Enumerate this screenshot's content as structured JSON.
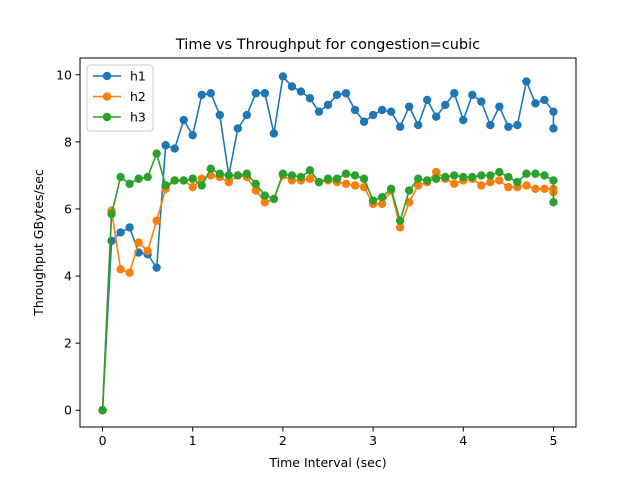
{
  "chart_data": {
    "type": "line",
    "title": "Time vs Throughput for congestion=cubic",
    "xlabel": "Time Interval (sec)",
    "ylabel": "Throughput GBytes/sec",
    "xlim": [
      -0.25,
      5.25
    ],
    "ylim": [
      -0.5,
      10.5
    ],
    "xticks": [
      0,
      1,
      2,
      3,
      4,
      5
    ],
    "yticks": [
      0,
      2,
      4,
      6,
      8,
      10
    ],
    "grid": false,
    "legend_position": "top-left",
    "x": [
      0,
      0.1,
      0.2,
      0.3,
      0.4,
      0.5,
      0.6,
      0.7,
      0.8,
      0.9,
      1.0,
      1.1,
      1.2,
      1.3,
      1.4,
      1.5,
      1.6,
      1.7,
      1.8,
      1.9,
      2.0,
      2.1,
      2.2,
      2.3,
      2.4,
      2.5,
      2.6,
      2.7,
      2.8,
      2.9,
      3.0,
      3.1,
      3.2,
      3.3,
      3.4,
      3.5,
      3.6,
      3.7,
      3.8,
      3.9,
      4.0,
      4.1,
      4.2,
      4.3,
      4.4,
      4.5,
      4.6,
      4.7,
      4.8,
      4.9,
      5.0,
      5.0
    ],
    "series": [
      {
        "name": "h1",
        "color": "#1f77b4",
        "values": [
          0,
          5.05,
          5.3,
          5.45,
          4.7,
          4.65,
          4.25,
          7.9,
          7.8,
          8.65,
          8.2,
          9.4,
          9.45,
          8.8,
          7.0,
          8.4,
          8.8,
          9.45,
          9.45,
          8.25,
          9.95,
          9.65,
          9.5,
          9.3,
          8.9,
          9.1,
          9.4,
          9.45,
          8.95,
          8.6,
          8.8,
          8.95,
          8.9,
          8.45,
          9.05,
          8.5,
          9.25,
          8.75,
          9.1,
          9.45,
          8.65,
          9.4,
          9.2,
          8.5,
          9.05,
          8.45,
          8.5,
          9.8,
          9.15,
          9.25,
          8.9,
          8.4
        ]
      },
      {
        "name": "h2",
        "color": "#ff7f0e",
        "values": [
          0,
          5.95,
          4.2,
          4.1,
          5.0,
          4.75,
          5.65,
          6.6,
          6.85,
          6.85,
          6.65,
          6.9,
          7.0,
          6.95,
          6.8,
          7.0,
          6.95,
          6.55,
          6.2,
          6.3,
          7.0,
          6.85,
          6.85,
          6.9,
          6.8,
          6.85,
          6.8,
          6.75,
          6.7,
          6.65,
          6.15,
          6.15,
          6.55,
          5.45,
          6.2,
          6.7,
          6.8,
          7.1,
          6.9,
          6.75,
          6.85,
          6.9,
          6.7,
          6.8,
          6.85,
          6.65,
          6.65,
          6.7,
          6.6,
          6.6,
          6.6,
          6.5
        ]
      },
      {
        "name": "h3",
        "color": "#2ca02c",
        "values": [
          0,
          5.85,
          6.95,
          6.75,
          6.9,
          6.95,
          7.65,
          6.7,
          6.85,
          6.85,
          6.9,
          6.7,
          7.2,
          7.05,
          7.0,
          7.0,
          7.05,
          6.75,
          6.4,
          6.3,
          7.05,
          7.0,
          6.95,
          7.15,
          6.8,
          6.9,
          6.9,
          7.05,
          7.0,
          6.9,
          6.25,
          6.35,
          6.6,
          5.65,
          6.55,
          6.9,
          6.85,
          6.9,
          6.95,
          7.0,
          6.95,
          6.95,
          7.0,
          7.0,
          7.1,
          6.95,
          6.8,
          7.05,
          7.05,
          7.0,
          6.85,
          6.2
        ]
      }
    ]
  }
}
